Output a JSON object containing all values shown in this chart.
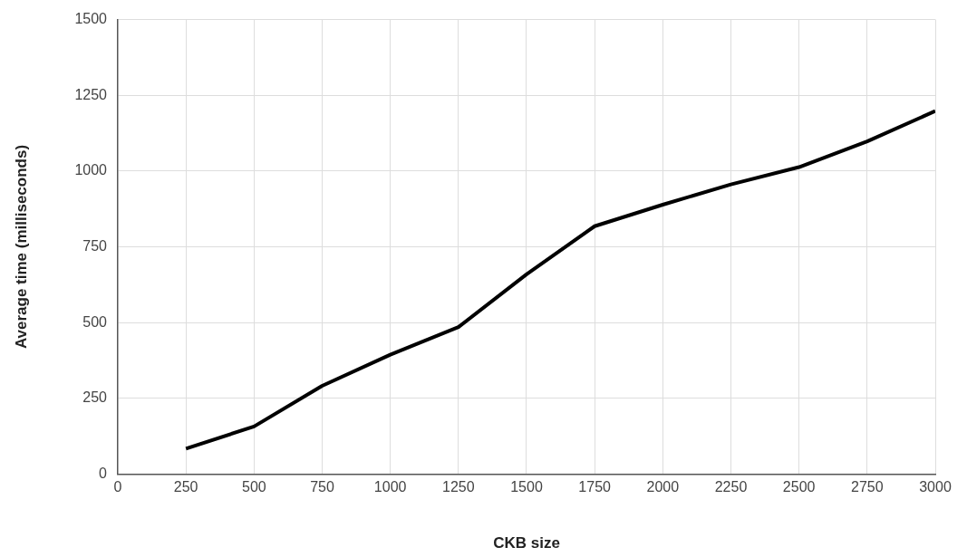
{
  "chart_data": {
    "type": "line",
    "xlabel": "CKB size",
    "ylabel": "Average time (milliseconds)",
    "x": [
      250,
      500,
      750,
      1000,
      1250,
      1500,
      1750,
      2000,
      2250,
      2500,
      2750,
      3000
    ],
    "series": [
      {
        "color": "#000000",
        "values": [
          84,
          157,
          291,
          394,
          485,
          659,
          818,
          889,
          956,
          1013,
          1098,
          1198
        ]
      }
    ],
    "xlim": [
      0,
      3000
    ],
    "xticks": [
      0,
      250,
      500,
      750,
      1000,
      1250,
      1500,
      1750,
      2000,
      2250,
      2500,
      2750,
      3000
    ],
    "ylim": [
      0,
      1500
    ],
    "yticks": [
      0,
      250,
      500,
      750,
      1000,
      1250,
      1500
    ],
    "grid": true,
    "legend": false,
    "marker": "none",
    "line_style": "solid"
  }
}
